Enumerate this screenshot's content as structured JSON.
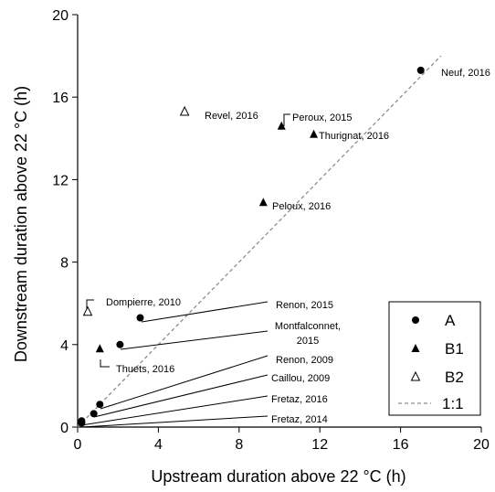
{
  "chart_data": {
    "type": "scatter",
    "title": "",
    "xlabel": "Upstream duration above 22 °C (h)",
    "ylabel": "Downstream  duration above  22 °C (h)",
    "xlim": [
      0,
      20
    ],
    "ylim": [
      0,
      20
    ],
    "xticks": [
      "0",
      "4",
      "8",
      "12",
      "16",
      "20"
    ],
    "yticks": [
      "0",
      "4",
      "8",
      "12",
      "16",
      "20"
    ],
    "grid": false,
    "legend_position": "bottom-right",
    "colors": {
      "axis": "#000000",
      "marker": "#000000",
      "reference_line": "#8c8c8c"
    },
    "series": [
      {
        "name": "A",
        "marker": "filled-circle",
        "points": [
          {
            "x": 17.0,
            "y": 17.3,
            "label": "Neuf, 2016"
          },
          {
            "x": 3.1,
            "y": 5.3,
            "label": "Renon, 2015"
          },
          {
            "x": 2.1,
            "y": 4.0,
            "label": "Montfalconnet, 2015"
          },
          {
            "x": 1.1,
            "y": 1.1,
            "label": "Renon, 2009"
          },
          {
            "x": 0.8,
            "y": 0.65,
            "label": "Caillou, 2009"
          },
          {
            "x": 0.2,
            "y": 0.3,
            "label": "Fretaz, 2016"
          },
          {
            "x": 0.2,
            "y": 0.2,
            "label": "Fretaz, 2014"
          }
        ]
      },
      {
        "name": "B1",
        "marker": "filled-triangle",
        "points": [
          {
            "x": 10.1,
            "y": 14.6,
            "label": "Peroux, 2015"
          },
          {
            "x": 11.7,
            "y": 14.2,
            "label": "Thurignat, 2016"
          },
          {
            "x": 9.2,
            "y": 10.9,
            "label": "Peloux, 2016"
          },
          {
            "x": 1.1,
            "y": 3.8,
            "label": "Thuets, 2016"
          }
        ]
      },
      {
        "name": "B2",
        "marker": "open-triangle",
        "points": [
          {
            "x": 5.3,
            "y": 15.3,
            "label": "Revel, 2016"
          },
          {
            "x": 0.5,
            "y": 5.6,
            "label": "Dompierre, 2010"
          }
        ]
      }
    ],
    "reference_line": {
      "name": "1:1",
      "style": "dashed",
      "from": [
        0,
        0
      ],
      "to": [
        18,
        18
      ]
    }
  }
}
